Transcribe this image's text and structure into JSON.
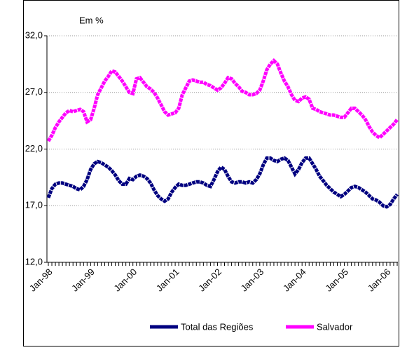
{
  "chart_data": {
    "type": "line",
    "annotation": "Em %",
    "categories": [
      "Jan-98",
      null,
      null,
      null,
      null,
      null,
      null,
      null,
      null,
      null,
      null,
      null,
      "Jan-99",
      null,
      null,
      null,
      null,
      null,
      null,
      null,
      null,
      null,
      null,
      null,
      "Jan-00",
      null,
      null,
      null,
      null,
      null,
      null,
      null,
      null,
      null,
      null,
      null,
      "Jan-01",
      null,
      null,
      null,
      null,
      null,
      null,
      null,
      null,
      null,
      null,
      null,
      "Jan-02",
      null,
      null,
      null,
      null,
      null,
      null,
      null,
      null,
      null,
      null,
      null,
      "Jan-03",
      null,
      null,
      null,
      null,
      null,
      null,
      null,
      null,
      null,
      null,
      null,
      "Jan-04",
      null,
      null,
      null,
      null,
      null,
      null,
      null,
      null,
      null,
      null,
      null,
      "Jan-05",
      null,
      null,
      null,
      null,
      null,
      null,
      null,
      null,
      null,
      null,
      null,
      "Jan-06",
      null,
      null,
      null
    ],
    "series": [
      {
        "name": "Total das Regiões",
        "color": "#000080",
        "values": [
          17.7,
          18.5,
          18.9,
          19.0,
          19.0,
          18.9,
          18.8,
          18.7,
          18.5,
          18.4,
          18.7,
          19.3,
          20.2,
          20.7,
          20.9,
          20.8,
          20.6,
          20.4,
          20.1,
          19.7,
          19.2,
          18.9,
          18.9,
          19.4,
          19.3,
          19.6,
          19.7,
          19.6,
          19.4,
          19.0,
          18.4,
          17.9,
          17.6,
          17.4,
          17.6,
          18.2,
          18.6,
          18.9,
          18.8,
          18.8,
          18.9,
          19.0,
          19.1,
          19.1,
          19.0,
          18.8,
          18.7,
          19.3,
          20.0,
          20.4,
          20.2,
          19.6,
          19.1,
          19.0,
          19.1,
          19.1,
          19.0,
          19.1,
          19.0,
          19.3,
          19.8,
          20.6,
          21.2,
          21.2,
          21.0,
          20.9,
          21.1,
          21.2,
          21.0,
          20.4,
          19.8,
          20.2,
          20.8,
          21.2,
          21.2,
          20.7,
          20.2,
          19.6,
          19.2,
          18.8,
          18.5,
          18.2,
          18.0,
          17.8,
          18.0,
          18.3,
          18.6,
          18.7,
          18.6,
          18.4,
          18.2,
          17.9,
          17.6,
          17.5,
          17.3,
          17.0,
          16.9,
          17.1,
          17.6,
          18.0
        ]
      },
      {
        "name": "Salvador",
        "color": "#ff00ff",
        "values": [
          22.7,
          23.2,
          23.9,
          24.4,
          24.8,
          25.2,
          25.4,
          25.3,
          25.4,
          25.5,
          25.3,
          24.4,
          24.6,
          25.6,
          26.8,
          27.4,
          28.0,
          28.4,
          28.9,
          28.8,
          28.4,
          28.0,
          27.5,
          27.0,
          26.9,
          28.2,
          28.3,
          27.9,
          27.5,
          27.3,
          27.0,
          26.5,
          25.9,
          25.3,
          25.0,
          25.1,
          25.2,
          25.6,
          26.8,
          27.4,
          28.0,
          28.1,
          28.0,
          27.9,
          27.9,
          27.7,
          27.6,
          27.4,
          27.2,
          27.4,
          27.8,
          28.3,
          28.2,
          27.8,
          27.5,
          27.1,
          27.0,
          26.8,
          26.8,
          26.9,
          27.2,
          28.0,
          29.0,
          29.5,
          29.8,
          29.5,
          28.7,
          28.0,
          27.5,
          26.8,
          26.3,
          26.2,
          26.5,
          26.6,
          26.4,
          25.6,
          25.5,
          25.3,
          25.2,
          25.1,
          25.0,
          25.0,
          24.9,
          24.8,
          24.8,
          25.2,
          25.6,
          25.6,
          25.3,
          25.0,
          24.6,
          24.0,
          23.5,
          23.2,
          23.0,
          23.3,
          23.6,
          23.9,
          24.2,
          24.6
        ]
      }
    ],
    "ylim": [
      12,
      32
    ],
    "yticks": [
      {
        "value": 12,
        "label": "12,0"
      },
      {
        "value": 17,
        "label": "17,0"
      },
      {
        "value": 22,
        "label": "22,0"
      },
      {
        "value": 27,
        "label": "27,0"
      },
      {
        "value": 32,
        "label": "32,0"
      }
    ],
    "grid": true
  }
}
